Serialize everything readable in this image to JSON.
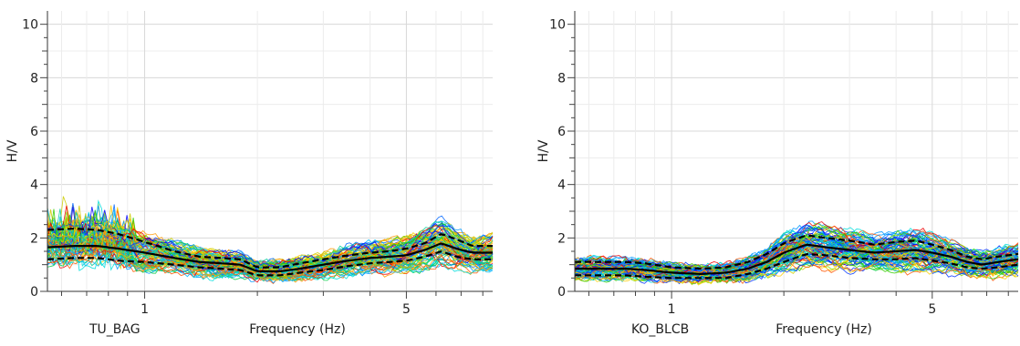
{
  "chart_data": [
    {
      "type": "line",
      "station": "TU_BAG",
      "xlabel": "Frequency (Hz)",
      "ylabel": "H/V",
      "x_scale": "log",
      "xlim": [
        0.55,
        8.5
      ],
      "ylim": [
        0,
        10.5
      ],
      "x_ticks": [
        1,
        5
      ],
      "y_ticks": [
        0,
        2,
        4,
        6,
        8,
        10
      ],
      "grid": true,
      "series_style": "many individual window curves colored from blue through green, yellow, orange to red; black solid mean curve; black dashed mean ± std curves",
      "window_count": 90,
      "mean_curve": {
        "x": [
          0.55,
          0.65,
          0.75,
          0.85,
          1.0,
          1.2,
          1.4,
          1.6,
          1.8,
          2.0,
          2.3,
          2.6,
          3.0,
          3.5,
          4.0,
          4.5,
          5.0,
          5.6,
          6.2,
          6.8,
          7.5,
          8.5
        ],
        "y": [
          1.65,
          1.7,
          1.7,
          1.6,
          1.45,
          1.25,
          1.1,
          1.05,
          1.0,
          0.75,
          0.75,
          0.85,
          1.0,
          1.15,
          1.25,
          1.3,
          1.35,
          1.55,
          1.8,
          1.6,
          1.45,
          1.45
        ]
      },
      "upper_std_curve": {
        "x": [
          0.55,
          0.65,
          0.75,
          0.85,
          1.0,
          1.2,
          1.4,
          1.6,
          1.8,
          2.0,
          2.3,
          2.6,
          3.0,
          3.5,
          4.0,
          4.5,
          5.0,
          5.6,
          6.2,
          6.8,
          7.5,
          8.5
        ],
        "y": [
          2.3,
          2.35,
          2.3,
          2.15,
          1.85,
          1.5,
          1.3,
          1.25,
          1.2,
          0.9,
          0.9,
          1.05,
          1.2,
          1.35,
          1.45,
          1.5,
          1.6,
          1.8,
          2.15,
          1.95,
          1.7,
          1.7
        ]
      },
      "lower_std_curve": {
        "x": [
          0.55,
          0.65,
          0.75,
          0.85,
          1.0,
          1.2,
          1.4,
          1.6,
          1.8,
          2.0,
          2.3,
          2.6,
          3.0,
          3.5,
          4.0,
          4.5,
          5.0,
          5.6,
          6.2,
          6.8,
          7.5,
          8.5
        ],
        "y": [
          1.2,
          1.25,
          1.25,
          1.15,
          1.1,
          1.0,
          0.9,
          0.85,
          0.8,
          0.6,
          0.6,
          0.7,
          0.8,
          0.95,
          1.05,
          1.1,
          1.15,
          1.3,
          1.5,
          1.3,
          1.2,
          1.2
        ]
      }
    },
    {
      "type": "line",
      "station": "KO_BLCB",
      "xlabel": "Frequency (Hz)",
      "ylabel": "H/V",
      "x_scale": "log",
      "xlim": [
        0.55,
        8.5
      ],
      "ylim": [
        0,
        10.5
      ],
      "x_ticks": [
        1,
        5
      ],
      "y_ticks": [
        0,
        2,
        4,
        6,
        8,
        10
      ],
      "grid": true,
      "series_style": "many individual window curves colored from blue through green, yellow, orange to red; black solid mean curve; black dashed mean ± std curves",
      "window_count": 90,
      "mean_curve": {
        "x": [
          0.55,
          0.65,
          0.75,
          0.85,
          1.0,
          1.2,
          1.4,
          1.6,
          1.8,
          2.0,
          2.3,
          2.6,
          3.0,
          3.5,
          4.0,
          4.5,
          5.0,
          5.6,
          6.2,
          6.8,
          7.5,
          8.5
        ],
        "y": [
          0.85,
          0.85,
          0.85,
          0.8,
          0.7,
          0.65,
          0.7,
          0.85,
          1.1,
          1.45,
          1.75,
          1.65,
          1.55,
          1.45,
          1.5,
          1.55,
          1.45,
          1.3,
          1.1,
          1.0,
          1.1,
          1.2
        ]
      },
      "upper_std_curve": {
        "x": [
          0.55,
          0.65,
          0.75,
          0.85,
          1.0,
          1.2,
          1.4,
          1.6,
          1.8,
          2.0,
          2.3,
          2.6,
          3.0,
          3.5,
          4.0,
          4.5,
          5.0,
          5.6,
          6.2,
          6.8,
          7.5,
          8.5
        ],
        "y": [
          1.1,
          1.1,
          1.1,
          1.05,
          0.9,
          0.85,
          0.9,
          1.1,
          1.4,
          1.8,
          2.1,
          2.0,
          1.9,
          1.75,
          1.85,
          1.9,
          1.75,
          1.55,
          1.3,
          1.2,
          1.3,
          1.4
        ]
      },
      "lower_std_curve": {
        "x": [
          0.55,
          0.65,
          0.75,
          0.85,
          1.0,
          1.2,
          1.4,
          1.6,
          1.8,
          2.0,
          2.3,
          2.6,
          3.0,
          3.5,
          4.0,
          4.5,
          5.0,
          5.6,
          6.2,
          6.8,
          7.5,
          8.5
        ],
        "y": [
          0.6,
          0.6,
          0.6,
          0.55,
          0.5,
          0.5,
          0.5,
          0.65,
          0.85,
          1.1,
          1.4,
          1.35,
          1.25,
          1.2,
          1.2,
          1.25,
          1.15,
          1.05,
          0.9,
          0.85,
          0.9,
          1.0
        ]
      }
    }
  ]
}
